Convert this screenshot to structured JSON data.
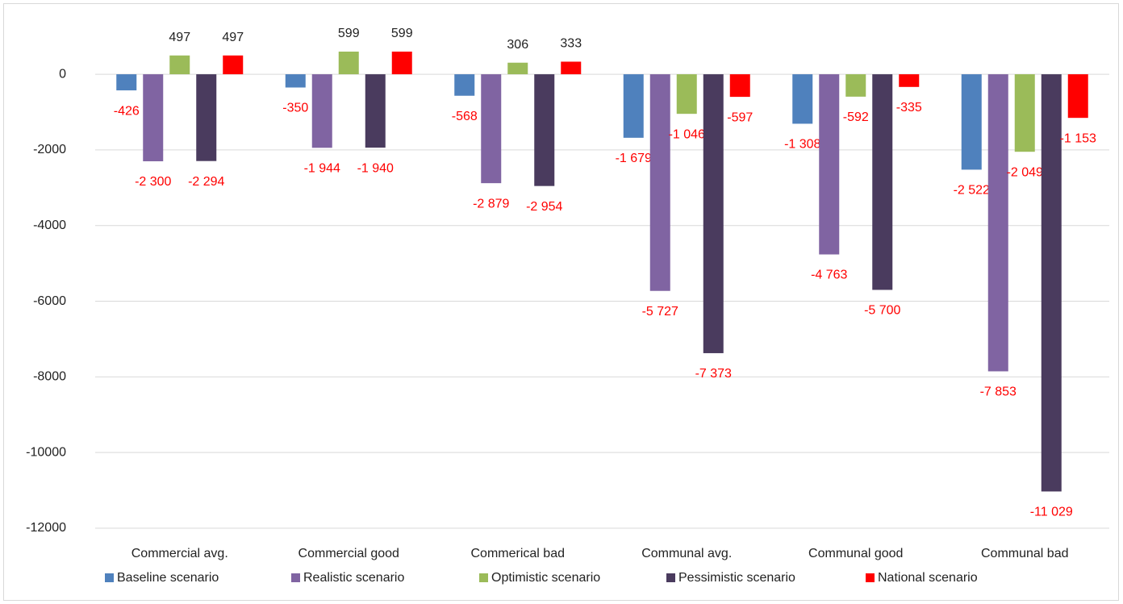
{
  "chart_data": {
    "type": "bar",
    "categories": [
      "Commercial avg.",
      "Commercial good",
      "Commerical bad",
      "Communal avg.",
      "Communal good",
      "Communal bad"
    ],
    "series": [
      {
        "name": "Baseline scenario",
        "color": "#4f81bd",
        "values": [
          -426,
          -350,
          -568,
          -1679,
          -1308,
          -2522
        ],
        "value_labels": [
          "-426",
          "-350",
          "-568",
          "-1 679",
          "-1 308",
          "-2 522"
        ]
      },
      {
        "name": "Realistic scenario",
        "color": "#8064a2",
        "values": [
          -2300,
          -1944,
          -2879,
          -5727,
          -4763,
          -7853
        ],
        "value_labels": [
          "-2 300",
          "-1 944",
          "-2 879",
          "-5 727",
          "-4 763",
          "-7 853"
        ]
      },
      {
        "name": "Optimistic scenario",
        "color": "#9bbb59",
        "values": [
          497,
          599,
          306,
          -1046,
          -592,
          -2049
        ],
        "value_labels": [
          "497",
          "599",
          "306",
          "-1 046",
          "-592",
          "-2 049"
        ]
      },
      {
        "name": "Pessimistic scenario",
        "color": "#4a3b5e",
        "values": [
          -2294,
          -1940,
          -2954,
          -7373,
          -5700,
          -11029
        ],
        "value_labels": [
          "-2 294",
          "-1 940",
          "-2 954",
          "-7 373",
          "-5 700",
          "-11 029"
        ]
      },
      {
        "name": "National scenario",
        "color": "#ff0000",
        "values": [
          497,
          599,
          333,
          -597,
          -335,
          -1153
        ],
        "value_labels": [
          "497",
          "599",
          "333",
          "-597",
          "-335",
          "-1 153"
        ]
      }
    ],
    "ylim": [
      -12000,
      1750
    ],
    "yticks": [
      0,
      -2000,
      -4000,
      -6000,
      -8000,
      -10000,
      -12000
    ],
    "grid": true,
    "legend": "bottom"
  }
}
